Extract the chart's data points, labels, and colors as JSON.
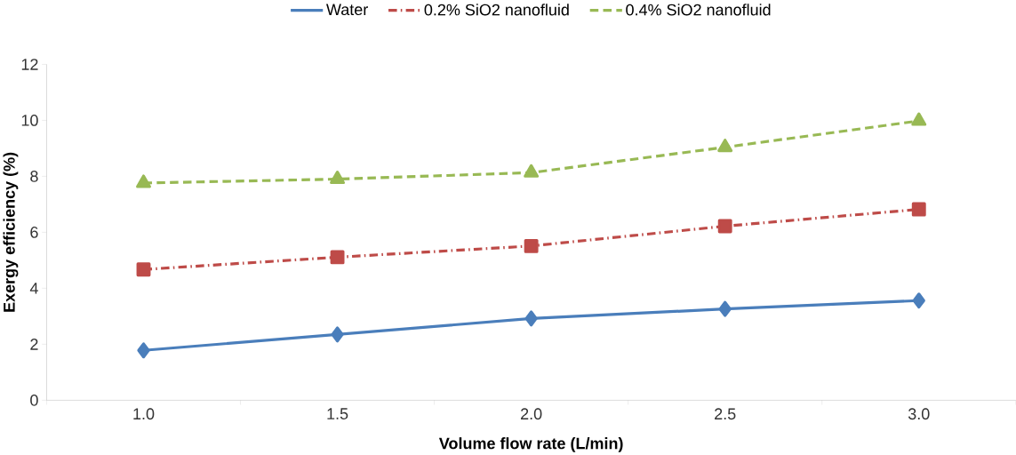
{
  "chart_data": {
    "type": "line",
    "xlabel": "Volume flow rate (L/min)",
    "ylabel": "Exergy efficiency (%)",
    "categories": [
      "1.0",
      "1.5",
      "2.0",
      "2.5",
      "3.0"
    ],
    "series": [
      {
        "name": "Water",
        "color": "#4a7ebb",
        "values": [
          1.78,
          2.35,
          2.92,
          3.26,
          3.56
        ],
        "marker": "diamond",
        "line_style": "solid"
      },
      {
        "name": "0.2% SiO2 nanofluid",
        "color": "#be4b48",
        "values": [
          4.67,
          5.11,
          5.51,
          6.22,
          6.82
        ],
        "marker": "square",
        "line_style": "dashdot"
      },
      {
        "name": "0.4% SiO2 nanofluid",
        "color": "#98b954",
        "values": [
          7.76,
          7.9,
          8.13,
          9.04,
          9.98
        ],
        "marker": "triangle",
        "line_style": "dashed"
      }
    ],
    "ylim": [
      0,
      12
    ],
    "yticks": [
      0,
      2,
      4,
      6,
      8,
      10,
      12
    ],
    "grid": false,
    "legend": "top"
  }
}
